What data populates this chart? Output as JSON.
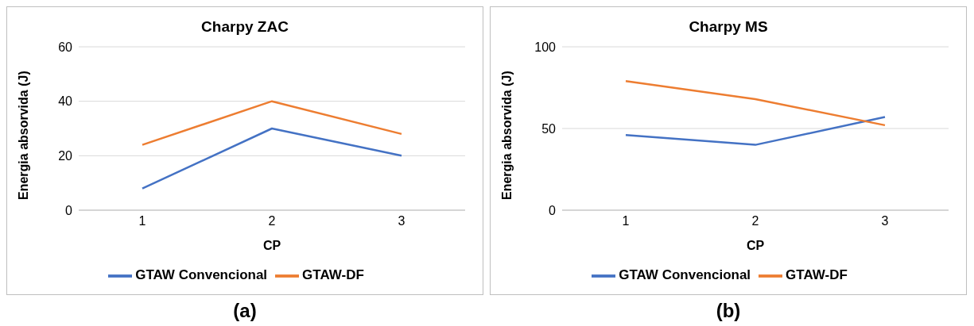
{
  "chart_data": [
    {
      "type": "line",
      "title": "Charpy ZAC",
      "xlabel": "CP",
      "ylabel": "Energia absorvida (J)",
      "categories": [
        "1",
        "2",
        "3"
      ],
      "series": [
        {
          "name": "GTAW Convencional",
          "color": "#4472c4",
          "values": [
            8,
            30,
            20
          ]
        },
        {
          "name": "GTAW-DF",
          "color": "#ed7d31",
          "values": [
            24,
            40,
            28
          ]
        }
      ],
      "ylim": [
        0,
        60
      ],
      "yticks": [
        0,
        20,
        40,
        60
      ],
      "grid": "y",
      "legend": "bottom",
      "marker": "none",
      "line_style": "solid",
      "annotations": [
        "(a)"
      ]
    },
    {
      "type": "line",
      "title": "Charpy MS",
      "xlabel": "CP",
      "ylabel": "Energia absorvida (J)",
      "categories": [
        "1",
        "2",
        "3"
      ],
      "series": [
        {
          "name": "GTAW Convencional",
          "color": "#4472c4",
          "values": [
            46,
            40,
            57
          ]
        },
        {
          "name": "GTAW-DF",
          "color": "#ed7d31",
          "values": [
            79,
            68,
            52
          ]
        }
      ],
      "ylim": [
        0,
        100
      ],
      "yticks": [
        0,
        50,
        100
      ],
      "grid": "y",
      "legend": "bottom",
      "marker": "none",
      "line_style": "solid",
      "annotations": [
        "(b)"
      ]
    }
  ]
}
